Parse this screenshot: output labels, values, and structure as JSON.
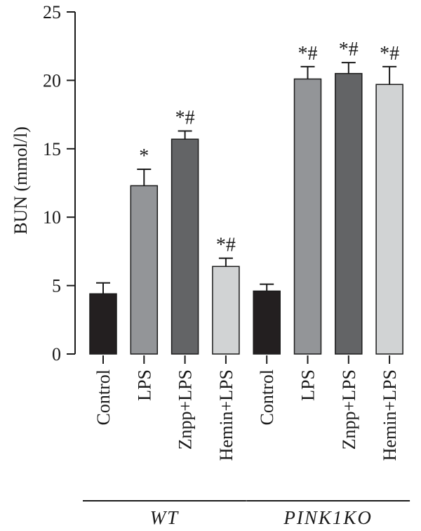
{
  "chart_data": {
    "type": "bar",
    "title": "",
    "xlabel": "",
    "ylabel": "BUN (mmol/l)",
    "ylim": [
      0,
      25
    ],
    "yticks": [
      0,
      5,
      10,
      15,
      20,
      25
    ],
    "grid": false,
    "categories": [
      "Control",
      "LPS",
      "Znpp+LPS",
      "Hemin+LPS",
      "Control",
      "LPS",
      "Znpp+LPS",
      "Hemin+LPS"
    ],
    "values": [
      4.4,
      12.3,
      15.7,
      6.4,
      4.6,
      20.1,
      20.5,
      19.7
    ],
    "errors": [
      0.8,
      1.2,
      0.6,
      0.6,
      0.5,
      0.9,
      0.8,
      1.3
    ],
    "annotations": [
      "",
      "*",
      "*#",
      "*#",
      "",
      "*#",
      "*#",
      "*#"
    ],
    "bar_colors": [
      "#231f20",
      "#939598",
      "#636466",
      "#d1d3d4",
      "#231f20",
      "#939598",
      "#636466",
      "#d1d3d4"
    ],
    "groups": [
      {
        "label": "WT",
        "start": 0,
        "end": 3
      },
      {
        "label": "PINK1KO",
        "start": 4,
        "end": 7
      }
    ]
  }
}
